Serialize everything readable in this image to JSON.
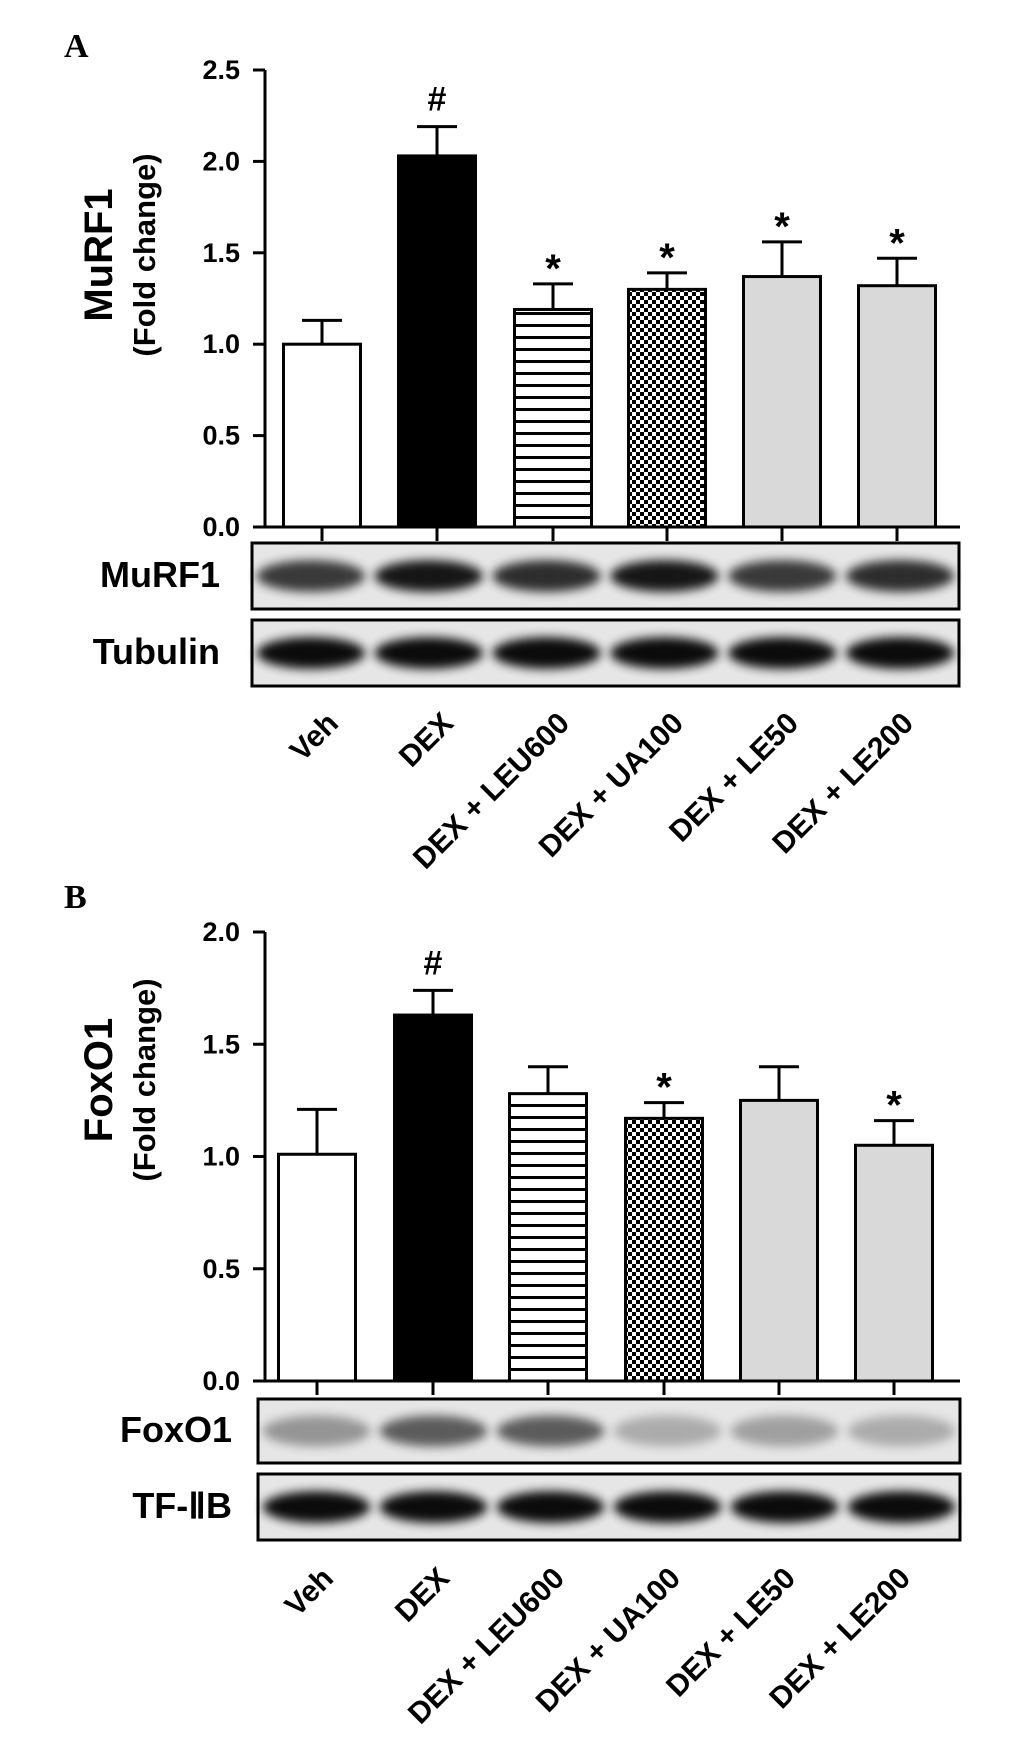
{
  "chart_data": [
    {
      "type": "bar",
      "panel": "A",
      "ylabel": "MuRF1",
      "ylabel_sub": "(Fold change)",
      "ylim": [
        0,
        2.5
      ],
      "yticks": [
        "0.0",
        "0.5",
        "1.0",
        "1.5",
        "2.0",
        "2.5"
      ],
      "categories": [
        "Veh",
        "DEX",
        "DEX + LEU600",
        "DEX + UA100",
        "DEX + LE50",
        "DEX + LE200"
      ],
      "values": [
        1.0,
        2.03,
        1.19,
        1.3,
        1.37,
        1.32
      ],
      "errors": [
        0.13,
        0.16,
        0.14,
        0.09,
        0.19,
        0.15
      ],
      "annotations": [
        "",
        "#",
        "*",
        "*",
        "*",
        "*"
      ],
      "fills": [
        "white",
        "black",
        "hstripes",
        "checker",
        "#d9d9d9",
        "#d9d9d9"
      ],
      "blots": [
        {
          "label": "MuRF1"
        },
        {
          "label": "Tubulin"
        }
      ]
    },
    {
      "type": "bar",
      "panel": "B",
      "ylabel": "FoxO1",
      "ylabel_sub": "(Fold change)",
      "ylim": [
        0,
        2.0
      ],
      "yticks": [
        "0.0",
        "0.5",
        "1.0",
        "1.5",
        "2.0"
      ],
      "categories": [
        "Veh",
        "DEX",
        "DEX + LEU600",
        "DEX + UA100",
        "DEX + LE50",
        "DEX + LE200"
      ],
      "values": [
        1.01,
        1.63,
        1.28,
        1.17,
        1.25,
        1.05
      ],
      "errors": [
        0.2,
        0.11,
        0.12,
        0.07,
        0.15,
        0.11
      ],
      "annotations": [
        "",
        "#",
        "",
        "*",
        "",
        "*"
      ],
      "fills": [
        "white",
        "black",
        "hstripes",
        "checker",
        "#d9d9d9",
        "#d9d9d9"
      ],
      "blots": [
        {
          "label": "FoxO1"
        },
        {
          "label": "TF-ⅡB"
        }
      ]
    }
  ]
}
